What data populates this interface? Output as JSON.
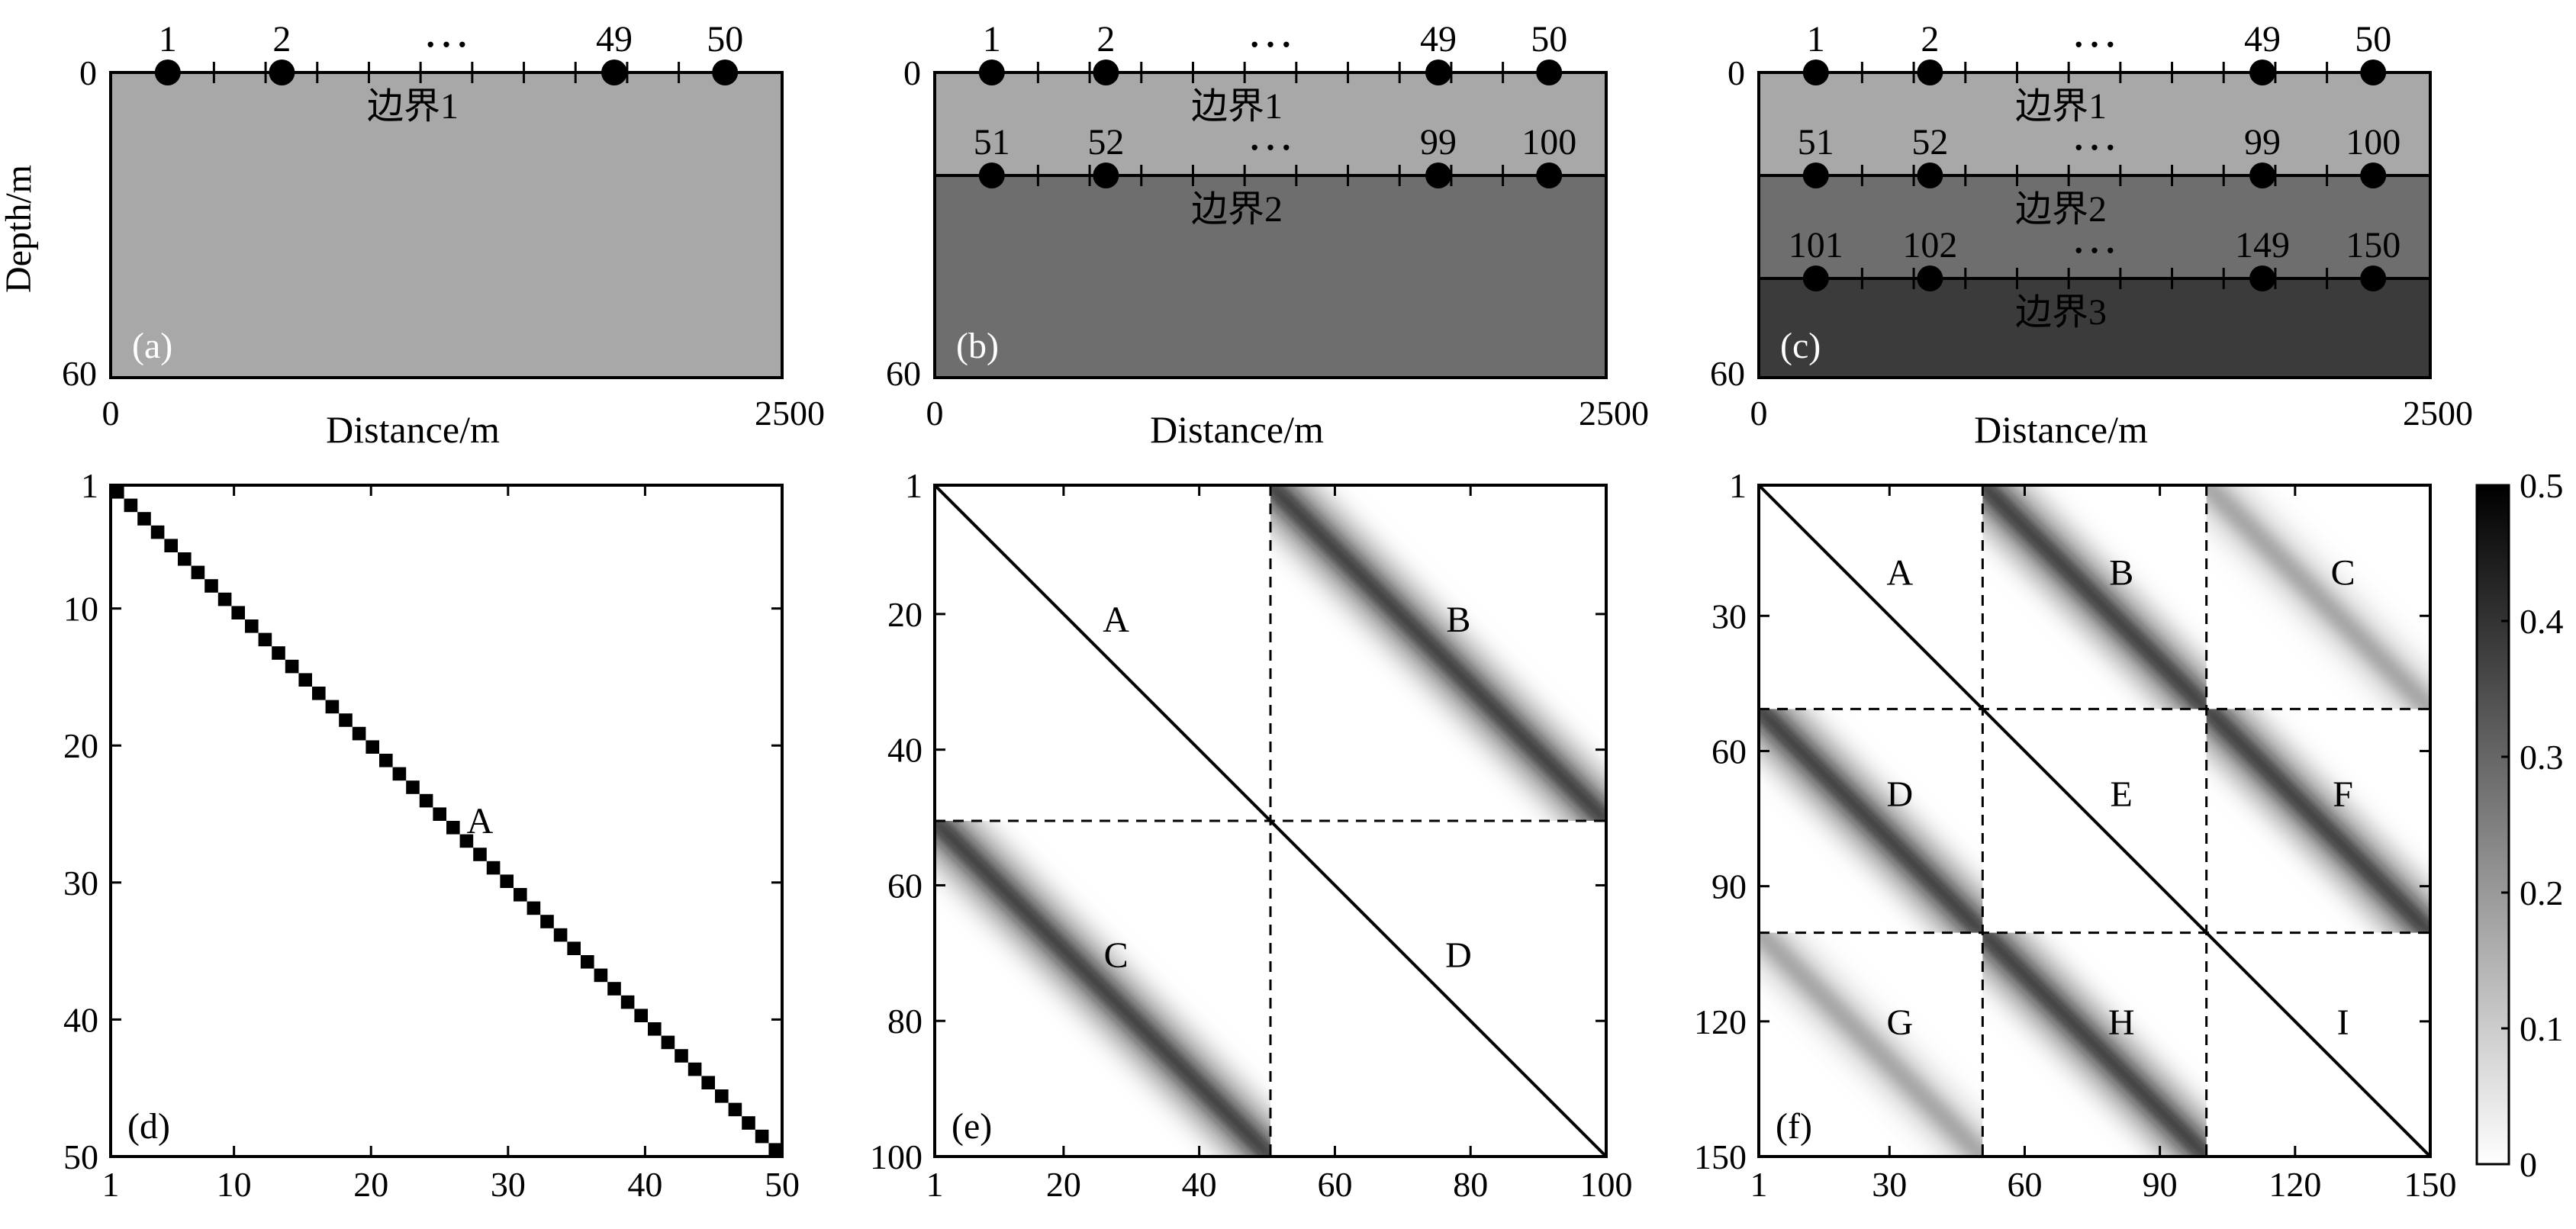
{
  "colors": {
    "layer1": "#a8a8a8",
    "layer2": "#6e6e6e",
    "layer3": "#3b3b3b",
    "ink": "#000000",
    "panel_label_light": "#ffffff"
  },
  "models": {
    "ylabel": "Depth/m",
    "xlabel": "Distance/m",
    "depth_ticks": [
      "0",
      "60"
    ],
    "distance_ticks": [
      "0",
      "2500"
    ],
    "ellipsis": "…",
    "panels": [
      {
        "label": "(a)",
        "layers": 1,
        "rows": [
          [
            "1",
            "2",
            "49",
            "50"
          ]
        ],
        "boundaries": [
          "边界1"
        ]
      },
      {
        "label": "(b)",
        "layers": 2,
        "rows": [
          [
            "1",
            "2",
            "49",
            "50"
          ],
          [
            "51",
            "52",
            "99",
            "100"
          ]
        ],
        "boundaries": [
          "边界1",
          "边界2"
        ]
      },
      {
        "label": "(c)",
        "layers": 3,
        "rows": [
          [
            "1",
            "2",
            "49",
            "50"
          ],
          [
            "51",
            "52",
            "99",
            "100"
          ],
          [
            "101",
            "102",
            "149",
            "150"
          ]
        ],
        "boundaries": [
          "边界1",
          "边界2",
          "边界3"
        ]
      }
    ]
  },
  "chart_data": [
    {
      "type": "heatmap",
      "label": "(d)",
      "n": 50,
      "description_blocks": [
        "A"
      ],
      "x_ticks": [
        "1",
        "10",
        "20",
        "30",
        "40",
        "50"
      ],
      "y_ticks": [
        "1",
        "10",
        "20",
        "30",
        "40",
        "50"
      ]
    },
    {
      "type": "heatmap",
      "label": "(e)",
      "n": 100,
      "description_blocks": [
        "A",
        "B",
        "C",
        "D"
      ],
      "x_ticks": [
        "1",
        "20",
        "40",
        "60",
        "80",
        "100"
      ],
      "y_ticks": [
        "1",
        "20",
        "40",
        "60",
        "80",
        "100"
      ]
    },
    {
      "type": "heatmap",
      "label": "(f)",
      "n": 150,
      "description_blocks": [
        "A",
        "B",
        "C",
        "D",
        "E",
        "F",
        "G",
        "H",
        "I"
      ],
      "x_ticks": [
        "1",
        "30",
        "60",
        "90",
        "120",
        "150"
      ],
      "y_ticks": [
        "1",
        "30",
        "60",
        "90",
        "120",
        "150"
      ]
    }
  ],
  "colorbar": {
    "ticks": [
      "0.5",
      "0.4",
      "0.3",
      "0.2",
      "0.1",
      "0"
    ],
    "range": [
      0,
      0.5
    ]
  }
}
